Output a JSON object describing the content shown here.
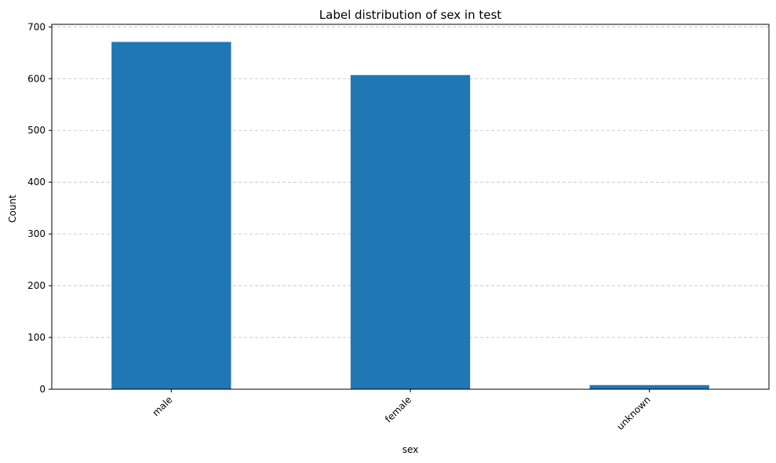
{
  "chart_data": {
    "type": "bar",
    "title": "Label distribution of sex in test",
    "xlabel": "sex",
    "ylabel": "Count",
    "categories": [
      "male",
      "female",
      "unknown"
    ],
    "values": [
      671,
      607,
      8
    ],
    "ylim": [
      0,
      705
    ],
    "yticks": [
      0,
      100,
      200,
      300,
      400,
      500,
      600,
      700
    ],
    "ytick_labels": [
      "0",
      "100",
      "200",
      "300",
      "400",
      "500",
      "600",
      "700"
    ],
    "grid": "y-dashed",
    "legend": "none",
    "bar_color": "#1f77b4",
    "grid_color": "#b0b0b0"
  }
}
